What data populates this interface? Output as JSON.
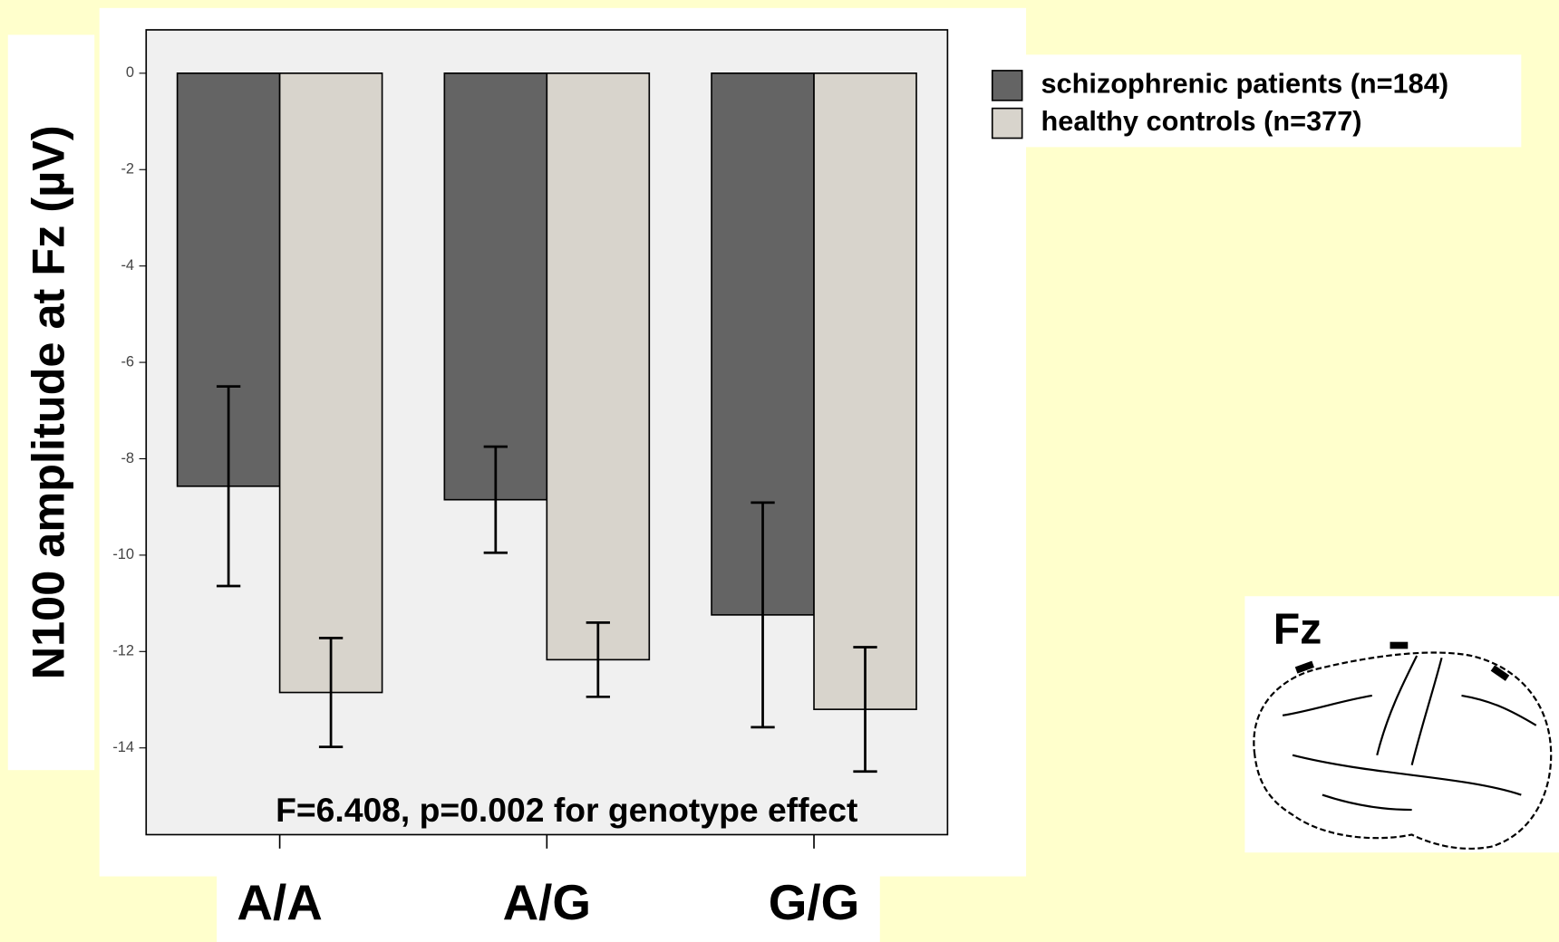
{
  "chart_data": {
    "type": "bar",
    "y_label": "N100 amplitude at Fz (µV)",
    "annotation": "F=6.408, p=0.002 for genotype effect",
    "inset_label": "Fz",
    "categories": [
      "A/A",
      "A/G",
      "G/G"
    ],
    "series": [
      {
        "name": "schizophrenic patients (n=184)",
        "color": "#646464",
        "values": [
          -8.57,
          -8.85,
          -11.24
        ],
        "errors": [
          2.07,
          1.1,
          2.33
        ]
      },
      {
        "name": "healthy controls (n=377)",
        "color": "#d8d4cc",
        "values": [
          -12.85,
          -12.17,
          -13.2
        ],
        "errors": [
          1.13,
          0.77,
          1.29
        ]
      }
    ],
    "ylim": [
      -15.8,
      0.9
    ],
    "yticks": [
      0,
      -2,
      -4,
      -6,
      -8,
      -10,
      -12,
      -14
    ],
    "legend": "right"
  }
}
